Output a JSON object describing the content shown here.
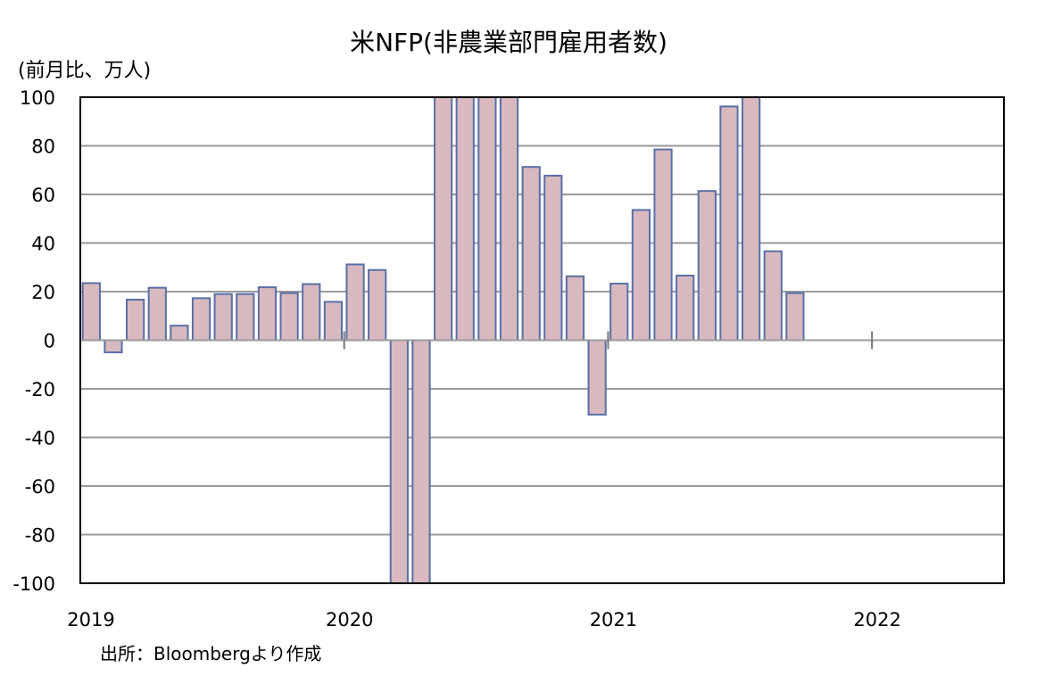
{
  "chart_data": {
    "type": "bar",
    "title": "米NFP(非農業部門雇用者数)",
    "unit_label": "(前月比、万人)",
    "source": "出所：Bloombergより作成",
    "ylim": [
      -100,
      100
    ],
    "yticks": [
      "100",
      "80",
      "60",
      "40",
      "20",
      "0",
      "-20",
      "-40",
      "-60",
      "-80",
      "-100"
    ],
    "x_year_labels": [
      "2019",
      "2020",
      "2021",
      "2022"
    ],
    "x_range_months": [
      "2019-01",
      "2022-06"
    ],
    "categories": [
      "2019-01",
      "2019-02",
      "2019-03",
      "2019-04",
      "2019-05",
      "2019-06",
      "2019-07",
      "2019-08",
      "2019-09",
      "2019-10",
      "2019-11",
      "2019-12",
      "2020-01",
      "2020-02",
      "2020-03",
      "2020-04",
      "2020-05",
      "2020-06",
      "2020-07",
      "2020-08",
      "2020-09",
      "2020-10",
      "2020-11",
      "2020-12",
      "2021-01",
      "2021-02",
      "2021-03",
      "2021-04",
      "2021-05",
      "2021-06",
      "2021-07",
      "2021-08",
      "2021-09"
    ],
    "values": [
      23.5,
      -5,
      16.7,
      21.6,
      6,
      17.3,
      19,
      19,
      21.8,
      19.4,
      23.1,
      15.8,
      31.2,
      28.9,
      -100,
      -100,
      100,
      100,
      100,
      100,
      71.3,
      67.7,
      26.3,
      -30.6,
      23.3,
      53.6,
      78.5,
      26.6,
      61.4,
      96.2,
      100,
      36.6,
      19.4
    ],
    "grid": true,
    "bar_fill": "#d8b9bf",
    "bar_stroke": "#5a6fa8"
  }
}
